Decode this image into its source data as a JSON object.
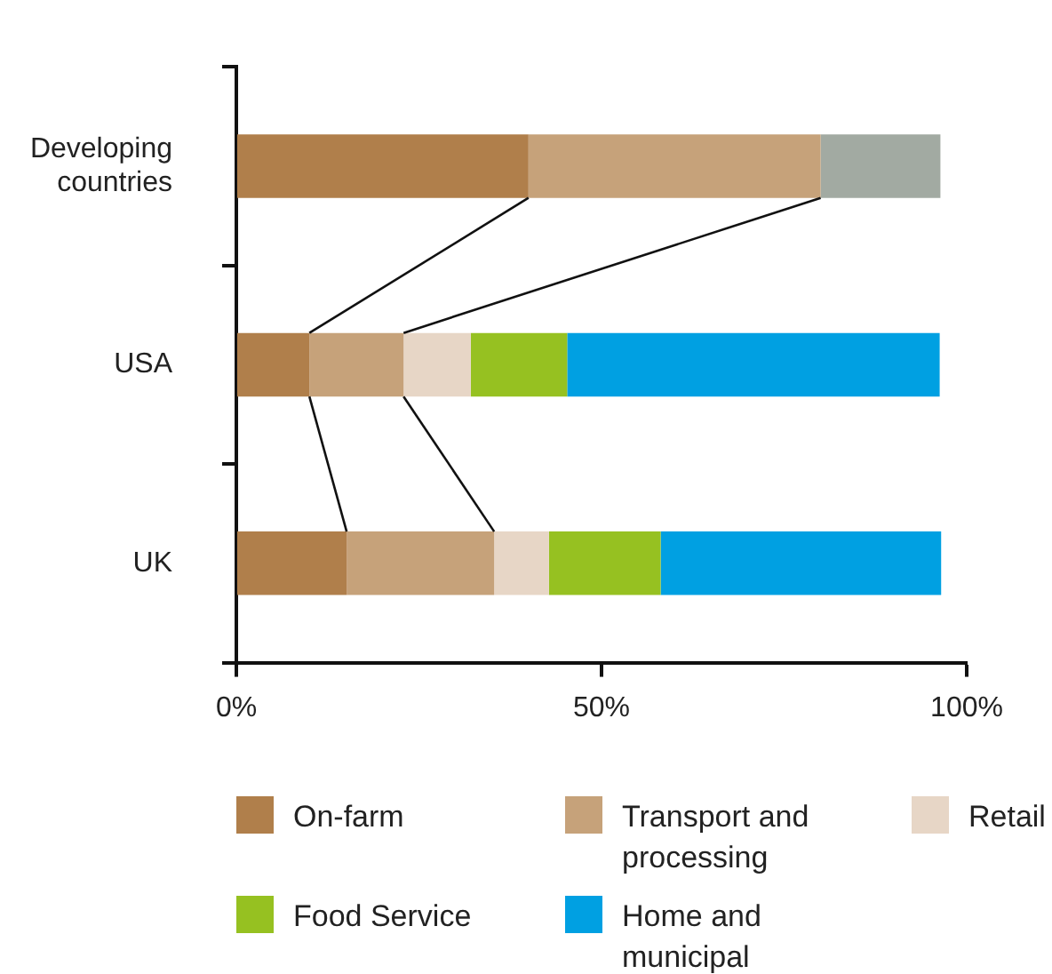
{
  "chart_data": {
    "type": "bar",
    "orientation": "horizontal",
    "stacked": true,
    "categories": [
      "Developing countries",
      "USA",
      "UK"
    ],
    "series": [
      {
        "name": "On-farm",
        "color": "#b07f4b",
        "values": [
          40,
          10,
          15.1
        ]
      },
      {
        "name": "Transport and processing",
        "color": "#c6a27a",
        "values": [
          40,
          12.9,
          20.2
        ]
      },
      {
        "name": "Retail",
        "color": "#e7d6c6",
        "values": [
          null,
          9.2,
          7.5
        ]
      },
      {
        "name": "Food Service",
        "color": "#96c121",
        "values": [
          null,
          13.2,
          15.3
        ]
      },
      {
        "name": "Home and municipal",
        "color": "#00a0e2",
        "values": [
          null,
          51,
          38.4
        ]
      },
      {
        "color": "#a2aaa2",
        "values": [
          16.4,
          null,
          null
        ]
      }
    ],
    "xlim": [
      0,
      100
    ],
    "xticks": [
      {
        "value": 0,
        "label": "0%"
      },
      {
        "value": 50,
        "label": "50%"
      },
      {
        "value": 100,
        "label": "100%"
      }
    ],
    "grid": false,
    "legend": "bottom"
  }
}
